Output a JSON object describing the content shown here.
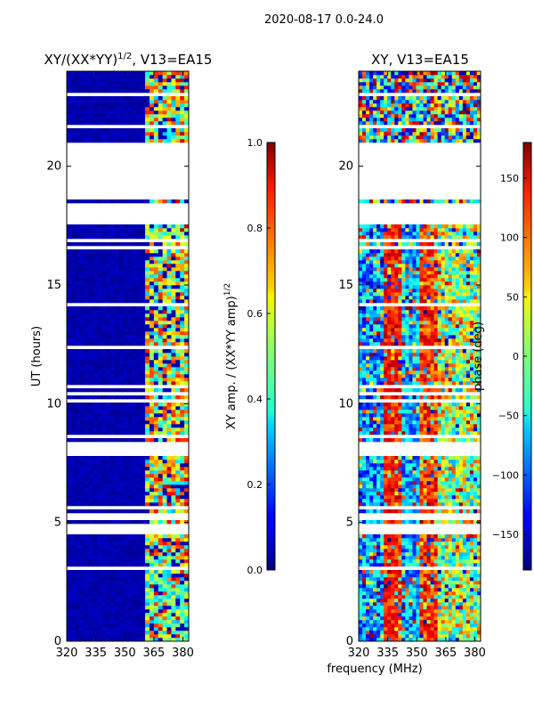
{
  "page_title": "2020-08-17 0.0-24.0",
  "chart_data": [
    {
      "type": "heatmap",
      "title_main": "XY/(XX*YY)",
      "title_exp": "1/2",
      "title_suffix": ", V13=EA15",
      "xlabel": "",
      "ylabel": "UT (hours)",
      "x_ticks": [
        320,
        335,
        350,
        365,
        380
      ],
      "x_range": [
        320,
        383
      ],
      "y_ticks": [
        0,
        5,
        10,
        15,
        20
      ],
      "y_range": [
        0,
        24
      ],
      "colormap": "jet",
      "value_range": [
        0.0,
        1.0
      ],
      "colorbar_label_main": "XY amp. / (XX*YY amp)",
      "colorbar_label_exp": "1/2",
      "colorbar_ticks": [
        "0.0",
        "0.2",
        "0.4",
        "0.6",
        "0.8",
        "1.0"
      ],
      "flagged_gaps_hours": [
        [
          17.6,
          18.4
        ],
        [
          18.6,
          21.0
        ],
        [
          8.0,
          8.4
        ],
        [
          5.1,
          5.4
        ],
        [
          4.5,
          4.9
        ]
      ],
      "active_band_mhz": [
        360,
        383
      ]
    },
    {
      "type": "heatmap",
      "title": "XY, V13=EA15",
      "xlabel": "frequency (MHz)",
      "ylabel": "",
      "x_ticks": [
        320,
        335,
        350,
        365,
        380
      ],
      "x_range": [
        320,
        383
      ],
      "y_ticks": [
        0,
        5,
        10,
        15,
        20
      ],
      "y_range": [
        0,
        24
      ],
      "colormap": "jet",
      "value_range": [
        -180,
        180
      ],
      "colorbar_label": "phase (deg)",
      "colorbar_ticks": [
        "150",
        "100",
        "50",
        "0",
        "−50",
        "−100",
        "−150"
      ],
      "colorbar_tick_values": [
        150,
        100,
        50,
        0,
        -50,
        -100,
        -150
      ],
      "flagged_gaps_hours": [
        [
          17.6,
          18.4
        ],
        [
          18.6,
          21.0
        ],
        [
          8.0,
          8.4
        ],
        [
          5.1,
          5.4
        ],
        [
          4.5,
          4.9
        ]
      ]
    }
  ]
}
